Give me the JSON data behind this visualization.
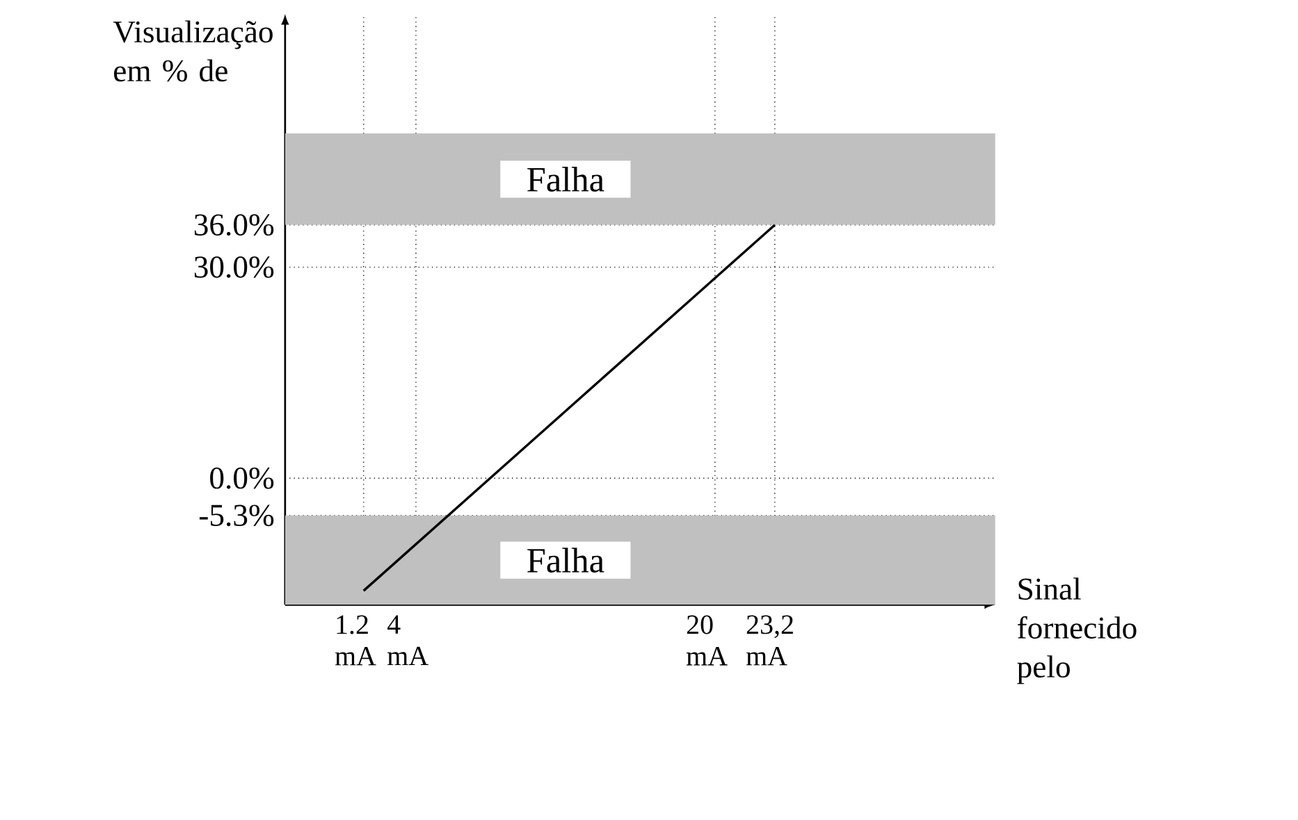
{
  "chart_data": {
    "type": "line",
    "xlabel": "Sinal fornecido pelo",
    "ylabel": "Visualização em % de",
    "x": [
      1.2,
      23.2
    ],
    "series": [
      {
        "color": "#000000",
        "values": [
          -16,
          36
        ]
      }
    ],
    "xlim": [
      -3,
      35
    ],
    "ylim": [
      -18,
      66
    ],
    "xticks": [
      {
        "value": 1.2,
        "label": "1.2 mA"
      },
      {
        "value": 4,
        "label": "4 mA"
      },
      {
        "value": 20,
        "label": "20 mA"
      },
      {
        "value": 23.2,
        "label": "23,2 mA"
      }
    ],
    "yticks": [
      {
        "value": -5.3,
        "label": "-5.3%"
      },
      {
        "value": 0,
        "label": "0.0%"
      },
      {
        "value": 30,
        "label": "30.0%"
      },
      {
        "value": 36,
        "label": "36.0%"
      }
    ],
    "grid": true,
    "line_style": "solid",
    "bands": [
      {
        "axis": "y",
        "from": 36,
        "to": 49,
        "label": "Falha",
        "color": "#c0c0c0"
      },
      {
        "axis": "y",
        "from": -18,
        "to": -5.3,
        "label": "Falha",
        "color": "#c0c0c0"
      }
    ]
  }
}
